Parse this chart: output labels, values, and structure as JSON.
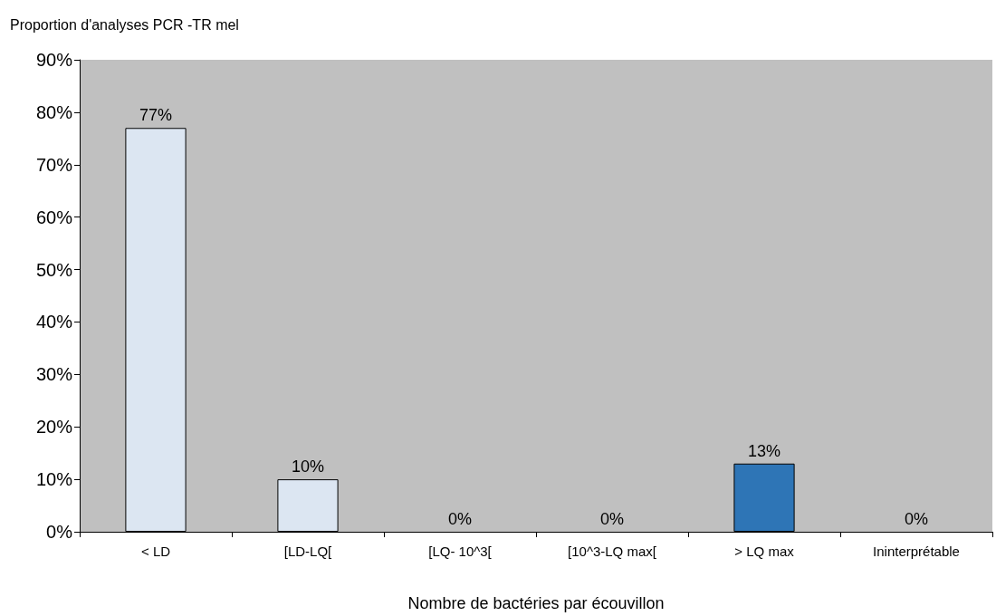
{
  "chart_data": {
    "type": "bar",
    "ylabel": "Proportion d'analyses PCR -TR mel",
    "xlabel": "Nombre de bactéries par écouvillon",
    "categories": [
      "< LD",
      "[LD-LQ[",
      "[LQ- 10^3[",
      "[10^3-LQ max[",
      "> LQ max",
      "Ininterprétable"
    ],
    "values": [
      77,
      10,
      0,
      0,
      13,
      0
    ],
    "value_labels": [
      "77%",
      "10%",
      "0%",
      "0%",
      "13%",
      "0%"
    ],
    "colors": [
      "#dce6f2",
      "#dce6f2",
      "#dce6f2",
      "#dce6f2",
      "#2e75b6",
      "#dce6f2"
    ],
    "ylim": [
      0,
      90
    ],
    "yticks": [
      {
        "value": 0,
        "label": "0%"
      },
      {
        "value": 10,
        "label": "10%"
      },
      {
        "value": 20,
        "label": "20%"
      },
      {
        "value": 30,
        "label": "30%"
      },
      {
        "value": 40,
        "label": "40%"
      },
      {
        "value": 50,
        "label": "50%"
      },
      {
        "value": 60,
        "label": "60%"
      },
      {
        "value": 70,
        "label": "70%"
      },
      {
        "value": 80,
        "label": "80%"
      },
      {
        "value": 90,
        "label": "90%"
      }
    ],
    "grid": false
  }
}
